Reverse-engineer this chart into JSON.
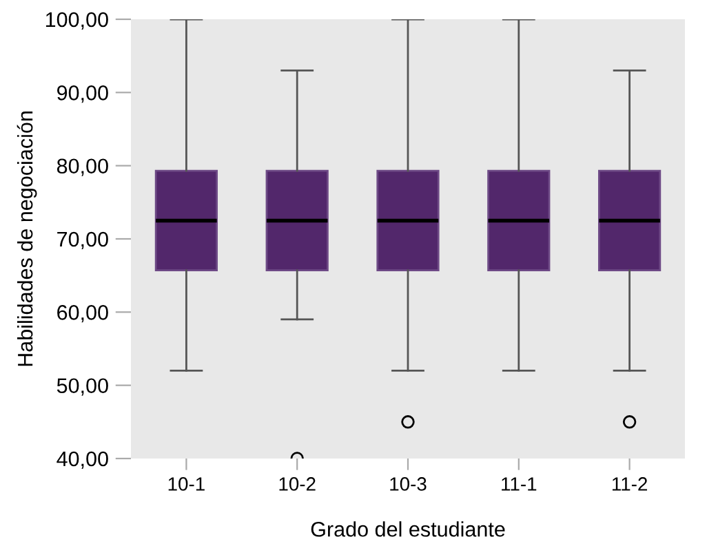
{
  "chart_data": {
    "type": "box",
    "xlabel": "Grado del estudiante",
    "ylabel": "Habilidades de negociación",
    "categories": [
      "10-1",
      "10-2",
      "10-3",
      "11-1",
      "11-2"
    ],
    "boxes": [
      {
        "low": 52,
        "q1": 65.7,
        "median": 72.5,
        "q3": 79.3,
        "high": 100
      },
      {
        "low": 59,
        "q1": 65.7,
        "median": 72.5,
        "q3": 79.3,
        "high": 93,
        "outliers": [
          40
        ]
      },
      {
        "low": 52,
        "q1": 65.7,
        "median": 72.5,
        "q3": 79.3,
        "high": 100,
        "outliers": [
          45
        ]
      },
      {
        "low": 52,
        "q1": 65.7,
        "median": 72.5,
        "q3": 79.3,
        "high": 100
      },
      {
        "low": 52,
        "q1": 65.7,
        "median": 72.5,
        "q3": 79.3,
        "high": 93,
        "outliers": [
          45
        ]
      }
    ],
    "color": "#52276b",
    "ylim": [
      40,
      100
    ],
    "yticks": [
      {
        "value": 40,
        "label": "40,00"
      },
      {
        "value": 50,
        "label": "50,00"
      },
      {
        "value": 60,
        "label": "60,00"
      },
      {
        "value": 70,
        "label": "70,00"
      },
      {
        "value": 80,
        "label": "80,00"
      },
      {
        "value": 90,
        "label": "90,00"
      },
      {
        "value": 100,
        "label": "100,00"
      }
    ],
    "grid": false
  }
}
